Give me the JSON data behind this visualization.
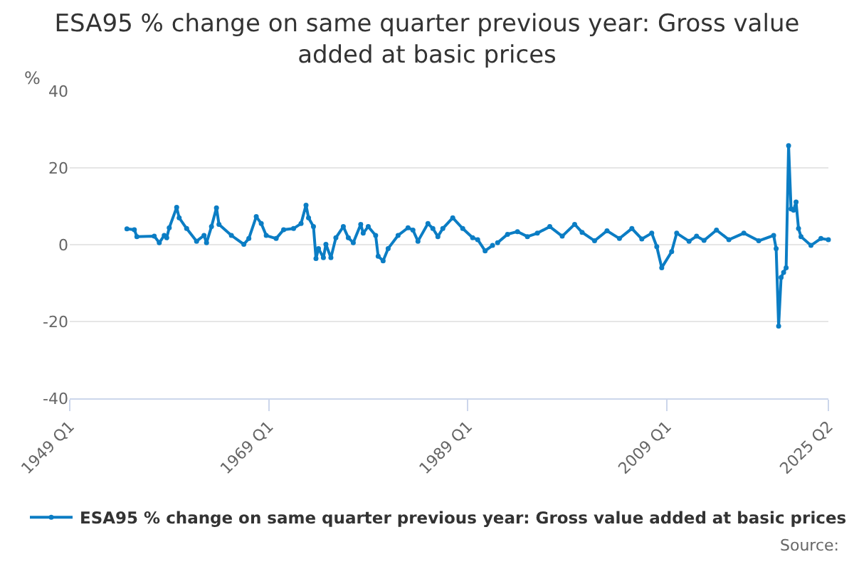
{
  "chart_data": {
    "type": "line",
    "title": "ESA95 % change on same quarter previous year: Gross value added at basic prices",
    "ylabel": "%",
    "annotations": [
      "Source:"
    ],
    "x": [
      "1954-10",
      "1955-07",
      "1955-10",
      "1957-07",
      "1958-01",
      "1958-07",
      "1958-10",
      "1959-01",
      "1959-10",
      "1960-01",
      "1960-10",
      "1961-10",
      "1962-07",
      "1962-10",
      "1963-04",
      "1963-10",
      "1964-01",
      "1965-04",
      "1966-07",
      "1967-01",
      "1967-10",
      "1968-04",
      "1968-10",
      "1969-10",
      "1970-07",
      "1971-07",
      "1972-04",
      "1972-10",
      "1973-01",
      "1973-07",
      "1973-10",
      "1974-01",
      "1974-07",
      "1974-10",
      "1975-04",
      "1975-10",
      "1976-07",
      "1977-01",
      "1977-07",
      "1978-04",
      "1978-07",
      "1979-01",
      "1979-10",
      "1980-01",
      "1980-07",
      "1981-01",
      "1982-01",
      "1983-01",
      "1983-07",
      "1984-01",
      "1985-01",
      "1985-07",
      "1986-01",
      "1986-07",
      "1987-07",
      "1988-07",
      "1989-07",
      "1990-01",
      "1990-10",
      "1991-07",
      "1991-10",
      "1992-01",
      "1993-01",
      "1994-01",
      "1995-01",
      "1996-01",
      "1997-04",
      "1998-07",
      "1999-10",
      "2000-07",
      "2001-10",
      "2003-01",
      "2004-04",
      "2005-07",
      "2006-07",
      "2007-07",
      "2008-01",
      "2008-07",
      "2009-07",
      "2010-01",
      "2011-04",
      "2012-01",
      "2012-10",
      "2014-01",
      "2015-04",
      "2016-10",
      "2018-04",
      "2019-10",
      "2020-01",
      "2020-04",
      "2020-07",
      "2020-10",
      "2021-01",
      "2021-04",
      "2021-07",
      "2021-10",
      "2022-01",
      "2022-04",
      "2022-07",
      "2023-07",
      "2024-07",
      "2025-04"
    ],
    "series": [
      {
        "name": "ESA95 % change on same quarter previous year: Gross value added at basic prices",
        "color": "#0b7dc4",
        "values": [
          4.1,
          3.9,
          2.1,
          2.2,
          0.5,
          2.4,
          1.8,
          4.4,
          9.7,
          7.0,
          4.2,
          0.9,
          2.4,
          0.5,
          4.7,
          9.6,
          5.3,
          2.4,
          0.1,
          1.6,
          7.3,
          5.5,
          2.4,
          1.6,
          3.9,
          4.2,
          5.5,
          10.3,
          7.0,
          4.7,
          -3.6,
          -1.0,
          -3.4,
          0.1,
          -3.4,
          1.8,
          4.7,
          1.8,
          0.5,
          5.3,
          3.0,
          4.7,
          2.4,
          -3.0,
          -4.2,
          -1.0,
          2.4,
          4.4,
          3.8,
          0.9,
          5.5,
          4.2,
          2.1,
          4.2,
          7.0,
          4.2,
          1.8,
          1.3,
          -1.6,
          -0.2,
          null,
          0.5,
          2.7,
          3.4,
          2.1,
          3.0,
          4.7,
          2.2,
          5.3,
          3.2,
          1.0,
          3.6,
          1.6,
          4.2,
          1.5,
          3.0,
          -0.5,
          -6.0,
          -1.8,
          3.0,
          0.9,
          2.2,
          1.1,
          3.8,
          1.3,
          3.0,
          1.0,
          2.4,
          -1.0,
          -21.2,
          -8.5,
          -7.2,
          -6.0,
          25.8,
          9.3,
          9.0,
          11.1,
          4.2,
          2.1,
          -0.2,
          1.6,
          1.3
        ]
      }
    ],
    "xlim": [
      "1949-01",
      "2025-04"
    ],
    "xticks": [
      {
        "value": "1949-01",
        "label": "1949 Q1"
      },
      {
        "value": "1969-01",
        "label": "1969 Q1"
      },
      {
        "value": "1989-01",
        "label": "1989 Q1"
      },
      {
        "value": "2009-01",
        "label": "2009 Q1"
      },
      {
        "value": "2025-04",
        "label": "2025 Q2"
      }
    ],
    "ylim": [
      -40,
      40
    ],
    "yticks": [
      -40,
      -20,
      0,
      20,
      40
    ],
    "grid": "y",
    "legend": "bottom",
    "marker": "circle",
    "line_style": "solid"
  }
}
